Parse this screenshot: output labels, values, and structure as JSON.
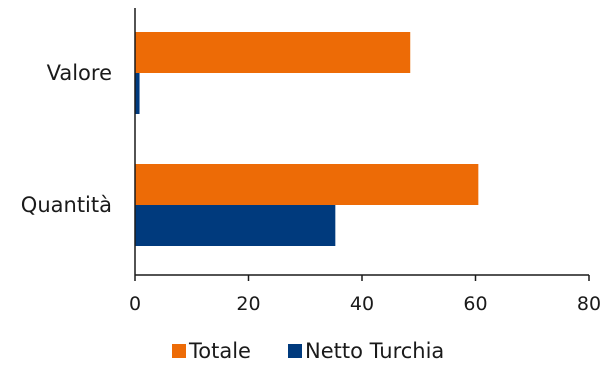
{
  "chart_data": {
    "type": "bar",
    "orientation": "horizontal",
    "categories": [
      "Valore",
      "Quantità"
    ],
    "series": [
      {
        "name": "Totale",
        "values": [
          48.5,
          60.5
        ],
        "color": "#ED6B06"
      },
      {
        "name": "Netto Turchia",
        "values": [
          0.8,
          35.3
        ],
        "color": "#003A7D"
      }
    ],
    "xlim": [
      0,
      80
    ],
    "xticks": [
      "0",
      "20",
      "40",
      "60",
      "80"
    ],
    "grid": false,
    "legend_position": "bottom",
    "title": "",
    "xlabel": "",
    "ylabel": ""
  }
}
